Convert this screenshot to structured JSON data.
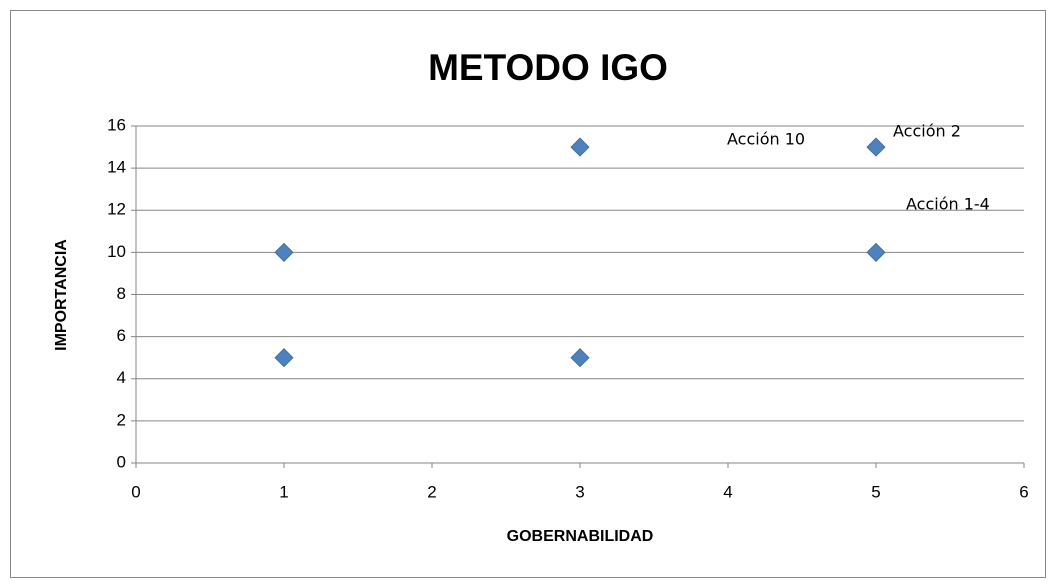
{
  "chart_data": {
    "type": "scatter",
    "title": "METODO IGO",
    "x_label": "GOBERNABILIDAD",
    "y_label": "IMPORTANCIA",
    "series": [
      {
        "color": "#4f81bd",
        "x": [
          1,
          1,
          3,
          3,
          5,
          5
        ],
        "values": [
          10,
          5,
          15,
          5,
          15,
          10
        ]
      }
    ],
    "xlim": [
      0,
      6
    ],
    "xticks": [
      0,
      1,
      2,
      3,
      4,
      5,
      6
    ],
    "ylim": [
      0,
      16
    ],
    "yticks": [
      0,
      2,
      4,
      6,
      8,
      10,
      12,
      14,
      16
    ],
    "grid": true,
    "annotations": [
      "Acción 10",
      "Acción 2",
      "Acción 1-4"
    ]
  }
}
